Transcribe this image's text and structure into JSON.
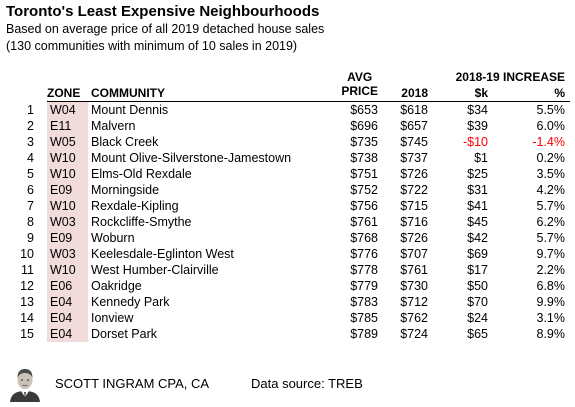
{
  "title": "Toronto's Least Expensive Neighbourhoods",
  "subtitle_line1": "Based on average price of all 2019 detached house sales",
  "subtitle_line2": "(130 communities with minimum of 10 sales in 2019)",
  "headers": {
    "zone": "ZONE",
    "community": "COMMUNITY",
    "avg_price": "AVG\nPRICE",
    "y2018": "2018",
    "increase": "2018-19 INCREASE",
    "k": "$k",
    "pct": "%"
  },
  "rows": [
    {
      "rank": "1",
      "zone": "W04",
      "community": "Mount Dennis",
      "avg": "$653",
      "y2018": "$618",
      "k": "$34",
      "pct": "5.5%"
    },
    {
      "rank": "2",
      "zone": "E11",
      "community": "Malvern",
      "avg": "$696",
      "y2018": "$657",
      "k": "$39",
      "pct": "6.0%"
    },
    {
      "rank": "3",
      "zone": "W05",
      "community": "Black Creek",
      "avg": "$735",
      "y2018": "$745",
      "k": "-$10",
      "pct": "-1.4%",
      "negative": true
    },
    {
      "rank": "4",
      "zone": "W10",
      "community": "Mount Olive-Silverstone-Jamestown",
      "avg": "$738",
      "y2018": "$737",
      "k": "$1",
      "pct": "0.2%"
    },
    {
      "rank": "5",
      "zone": "W10",
      "community": "Elms-Old Rexdale",
      "avg": "$751",
      "y2018": "$726",
      "k": "$25",
      "pct": "3.5%"
    },
    {
      "rank": "6",
      "zone": "E09",
      "community": "Morningside",
      "avg": "$752",
      "y2018": "$722",
      "k": "$31",
      "pct": "4.2%"
    },
    {
      "rank": "7",
      "zone": "W10",
      "community": "Rexdale-Kipling",
      "avg": "$756",
      "y2018": "$715",
      "k": "$41",
      "pct": "5.7%"
    },
    {
      "rank": "8",
      "zone": "W03",
      "community": "Rockcliffe-Smythe",
      "avg": "$761",
      "y2018": "$716",
      "k": "$45",
      "pct": "6.2%"
    },
    {
      "rank": "9",
      "zone": "E09",
      "community": "Woburn",
      "avg": "$768",
      "y2018": "$726",
      "k": "$42",
      "pct": "5.7%"
    },
    {
      "rank": "10",
      "zone": "W03",
      "community": "Keelesdale-Eglinton West",
      "avg": "$776",
      "y2018": "$707",
      "k": "$69",
      "pct": "9.7%"
    },
    {
      "rank": "11",
      "zone": "W10",
      "community": "West Humber-Clairville",
      "avg": "$778",
      "y2018": "$761",
      "k": "$17",
      "pct": "2.2%"
    },
    {
      "rank": "12",
      "zone": "E06",
      "community": "Oakridge",
      "avg": "$779",
      "y2018": "$730",
      "k": "$50",
      "pct": "6.8%"
    },
    {
      "rank": "13",
      "zone": "E04",
      "community": "Kennedy Park",
      "avg": "$783",
      "y2018": "$712",
      "k": "$70",
      "pct": "9.9%"
    },
    {
      "rank": "14",
      "zone": "E04",
      "community": "Ionview",
      "avg": "$785",
      "y2018": "$762",
      "k": "$24",
      "pct": "3.1%"
    },
    {
      "rank": "15",
      "zone": "E04",
      "community": "Dorset Park",
      "avg": "$789",
      "y2018": "$724",
      "k": "$65",
      "pct": "8.9%"
    }
  ],
  "footer": {
    "author": "SCOTT INGRAM CPA, CA",
    "source": "Data source: TREB",
    "avatar_icon": "author-portrait-icon"
  },
  "colors": {
    "zone_bg": "#f2dcdb",
    "negative": "#ff0000"
  }
}
